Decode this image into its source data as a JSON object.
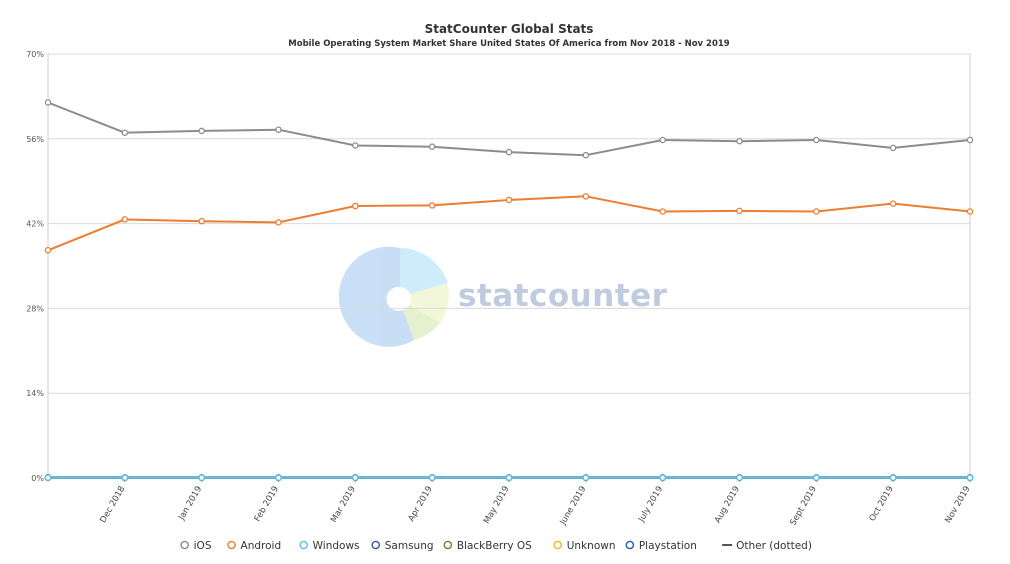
{
  "header": {
    "title": "StatCounter Global Stats",
    "subtitle": "Mobile Operating System Market Share United States Of America from Nov 2018 - Nov 2019"
  },
  "watermark": {
    "text": "statcounter"
  },
  "chart_data": {
    "type": "line",
    "title": "StatCounter Global Stats",
    "subtitle": "Mobile Operating System Market Share United States Of America from Nov 2018 - Nov 2019",
    "xlabel": "",
    "ylabel": "",
    "ylim": [
      0,
      70
    ],
    "y_ticks": [
      0,
      14,
      28,
      42,
      56,
      70
    ],
    "y_tick_labels": [
      "0%",
      "14%",
      "28%",
      "42%",
      "56%",
      "70%"
    ],
    "grid": true,
    "legend_position": "bottom",
    "categories": [
      "Nov 2018",
      "Dec 2018",
      "Jan 2019",
      "Feb 2019",
      "Mar 2019",
      "Apr 2019",
      "May 2019",
      "June 2019",
      "July 2019",
      "Aug 2019",
      "Sept 2019",
      "Oct 2019",
      "Nov 2019"
    ],
    "x_tick_labels": [
      "Dec 2018",
      "Jan 2019",
      "Feb 2019",
      "Mar 2019",
      "Apr 2019",
      "May 2019",
      "June 2019",
      "July 2019",
      "Aug 2019",
      "Sept 2019",
      "Oct 2019",
      "Nov 2019"
    ],
    "series": [
      {
        "name": "iOS",
        "color": "#8c8c8c",
        "values": [
          62.0,
          57.0,
          57.3,
          57.5,
          54.9,
          54.7,
          53.8,
          53.3,
          55.8,
          55.6,
          55.8,
          54.5,
          55.8
        ]
      },
      {
        "name": "Android",
        "color": "#ed7d31",
        "values": [
          37.6,
          42.7,
          42.4,
          42.2,
          44.9,
          45.0,
          45.9,
          46.5,
          44.0,
          44.1,
          44.0,
          45.3,
          44.0
        ]
      },
      {
        "name": "Windows",
        "color": "#5bc0eb",
        "values": [
          0.05,
          0.05,
          0.05,
          0.05,
          0.05,
          0.05,
          0.05,
          0.05,
          0.05,
          0.05,
          0.05,
          0.05,
          0.05
        ]
      },
      {
        "name": "Samsung",
        "color": "#3a55a4",
        "values": [
          0.1,
          0.1,
          0.1,
          0.1,
          0.1,
          0.1,
          0.1,
          0.1,
          0.1,
          0.1,
          0.1,
          0.1,
          0.1
        ]
      },
      {
        "name": "BlackBerry OS",
        "color": "#5a8a2e",
        "values": [
          0.01,
          0.01,
          0.01,
          0.01,
          0.01,
          0.01,
          0.01,
          0.01,
          0.01,
          0.01,
          0.01,
          0.01,
          0.01
        ]
      },
      {
        "name": "Unknown",
        "color": "#f0b429",
        "values": [
          0.05,
          0.05,
          0.05,
          0.05,
          0.05,
          0.05,
          0.05,
          0.05,
          0.05,
          0.05,
          0.05,
          0.05,
          0.05
        ]
      },
      {
        "name": "Playstation",
        "color": "#1f5fa8",
        "values": [
          0.05,
          0.05,
          0.05,
          0.05,
          0.05,
          0.05,
          0.05,
          0.05,
          0.05,
          0.05,
          0.05,
          0.05,
          0.05
        ]
      },
      {
        "name": "Other (dotted)",
        "color": "#555555",
        "values": [
          0.1,
          0.1,
          0.1,
          0.1,
          0.1,
          0.1,
          0.1,
          0.1,
          0.1,
          0.1,
          0.1,
          0.1,
          0.1
        ]
      }
    ]
  }
}
